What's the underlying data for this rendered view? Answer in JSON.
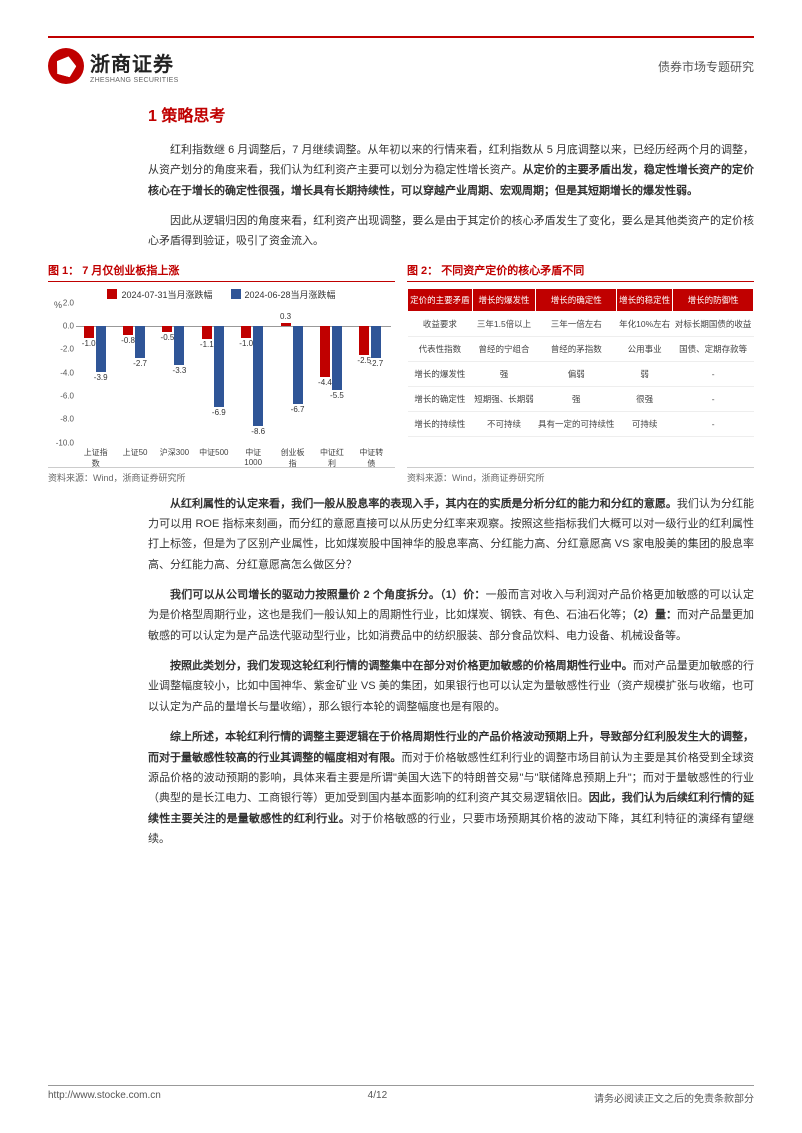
{
  "header": {
    "brand_cn": "浙商证券",
    "brand_en": "ZHESHANG SECURITIES",
    "doc_type": "债券市场专题研究"
  },
  "section_title": "1 策略思考",
  "para1_pre": "红利指数继 6 月调整后，7 月继续调整。从年初以来的行情来看，红利指数从 5 月底调整以来，已经历经两个月的调整，从资产划分的角度来看，我们认为红利资产主要可以划分为稳定性增长资产。",
  "para1_bold": "从定价的主要矛盾出发，稳定性增长资产的定价核心在于增长的确定性很强，增长具有长期持续性，可以穿越产业周期、宏观周期；但是其短期增长的爆发性弱。",
  "para2": "因此从逻辑归因的角度来看，红利资产出现调整，要么是由于其定价的核心矛盾发生了变化，要么是其他类资产的定价核心矛盾得到验证，吸引了资金流入。",
  "fig1": {
    "title": "图 1：  7 月仅创业板指上涨",
    "legend1": "2024-07-31当月涨跌幅",
    "legend2": "2024-06-28当月涨跌幅",
    "color1": "#c00000",
    "color2": "#2f5597",
    "ylabel": "%",
    "ymin": -10.0,
    "ymax": 2.0,
    "ybaseline": 0.0,
    "yticks": [
      2.0,
      0.0,
      -2.0,
      -4.0,
      -6.0,
      -8.0,
      -10.0
    ],
    "categories": [
      "上证指数",
      "上证50",
      "沪深300",
      "中证500",
      "中证1000",
      "创业板指",
      "中证红利",
      "中证转债"
    ],
    "series1": [
      -1.0,
      -0.8,
      -0.5,
      -1.1,
      -1.0,
      0.3,
      -4.4,
      -2.5
    ],
    "series2": [
      -3.9,
      -2.7,
      -3.3,
      -6.9,
      -8.6,
      -6.7,
      -5.5,
      -2.7
    ],
    "source": "资料来源：Wind，浙商证券研究所"
  },
  "fig2": {
    "title": "图 2：  不同资产定价的核心矛盾不同",
    "headers": [
      "定价的主要矛盾",
      "增长的爆发性",
      "增长的确定性",
      "增长的稳定性",
      "增长的防御性"
    ],
    "rows": [
      [
        "收益要求",
        "三年1.5倍以上",
        "三年一倍左右",
        "年化10%左右",
        "对标长期国债的收益"
      ],
      [
        "代表性指数",
        "曾经的宁组合",
        "曾经的茅指数",
        "公用事业",
        "国债、定期存款等"
      ],
      [
        "增长的爆发性",
        "强",
        "偏弱",
        "弱",
        "-"
      ],
      [
        "增长的确定性",
        "短期强、长期弱",
        "强",
        "很强",
        "-"
      ],
      [
        "增长的持续性",
        "不可持续",
        "具有一定的可持续性",
        "可持续",
        "-"
      ]
    ],
    "source": "资料来源：Wind，浙商证券研究所",
    "header_bg": "#c00000",
    "header_fg": "#ffffff"
  },
  "para3_bold1": "从红利属性的认定来看，我们一般从股息率的表现入手，其内在的实质是分析分红的能力和分红的意愿。",
  "para3_rest": "我们认为分红能力可以用 ROE 指标来刻画，而分红的意愿直接可以从历史分红率来观察。按照这些指标我们大概可以对一级行业的红利属性打上标签，但是为了区别产业属性，比如煤炭股中国神华的股息率高、分红能力高、分红意愿高 VS 家电股美的集团的股息率高、分红能力高、分红意愿高怎么做区分？",
  "para4_bold1": "我们可以从公司增长的驱动力按照量价 2 个角度拆分。（1）价：",
  "para4_mid1": "一般而言对收入与利润对产品价格更加敏感的可以认定为是价格型周期行业，这也是我们一般认知上的周期性行业，比如煤炭、钢铁、有色、石油石化等；",
  "para4_bold2": "（2）量：",
  "para4_mid2": "而对产品量更加敏感的可以认定为是产品迭代驱动型行业，比如消费品中的纺织服装、部分食品饮料、电力设备、机械设备等。",
  "para5_bold1": "按照此类划分，我们发现这轮红利行情的调整集中在部分对价格更加敏感的价格周期性行业中。",
  "para5_rest": "而对产品量更加敏感的行业调整幅度较小，比如中国神华、紫金矿业 VS 美的集团，如果银行也可以认定为量敏感性行业（资产规模扩张与收缩，也可以认定为产品的量增长与量收缩），那么银行本轮的调整幅度也是有限的。",
  "para6_bold1": "综上所述，本轮红利行情的调整主要逻辑在于价格周期性行业的产品价格波动预期上升，导致部分红利股发生大的调整，而对于量敏感性较高的行业其调整的幅度相对有限。",
  "para6_mid": "而对于价格敏感性红利行业的调整市场目前认为主要是其价格受到全球资源品价格的波动预期的影响，具体来看主要是所谓\"美国大选下的特朗普交易\"与\"联储降息预期上升\"；而对于量敏感性的行业（典型的是长江电力、工商银行等）更加受到国内基本面影响的红利资产其交易逻辑依旧。",
  "para6_bold2": "因此，我们认为后续红利行情的延续性主要关注的是量敏感性的红利行业。",
  "para6_end": "对于价格敏感的行业，只要市场预期其价格的波动下降，其红利特征的演绎有望继续。",
  "footer": {
    "url": "http://www.stocke.com.cn",
    "page": "4/12",
    "disclaimer": "请务必阅读正文之后的免责条款部分"
  },
  "colors": {
    "brand": "#c00000",
    "text": "#333333"
  }
}
